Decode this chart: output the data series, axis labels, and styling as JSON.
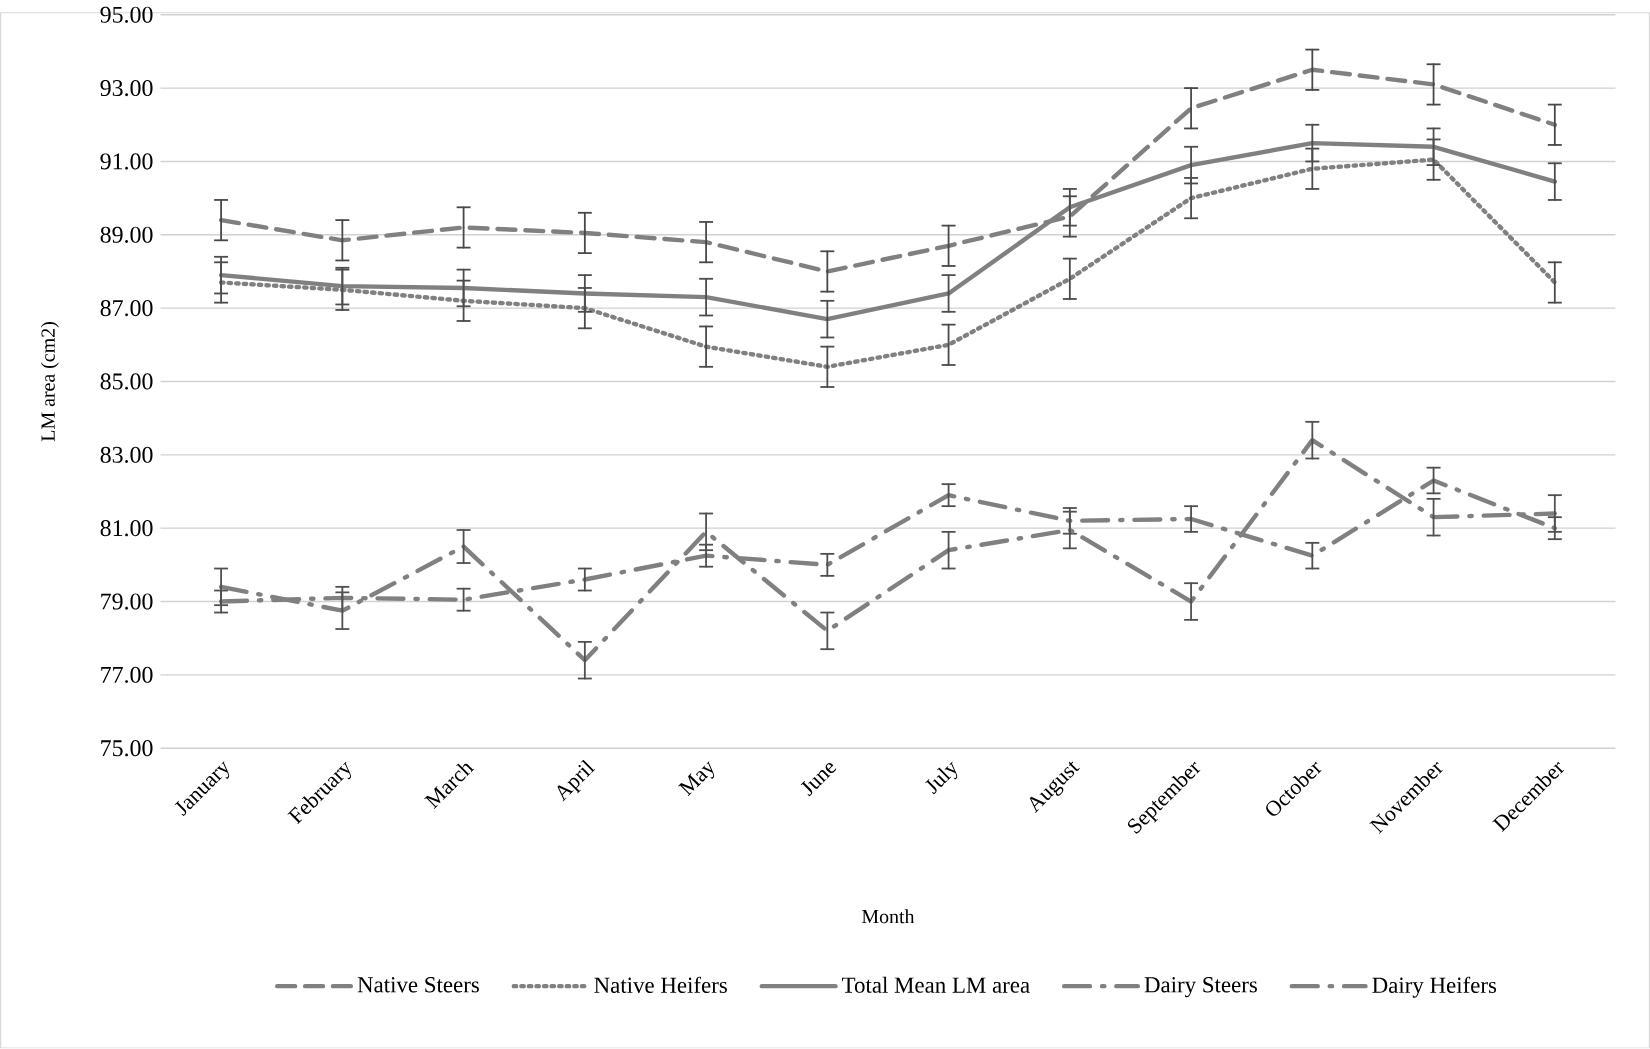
{
  "chart_data": {
    "type": "line",
    "xlabel": "Month",
    "ylabel": "LM area (cm2)",
    "categories": [
      "January",
      "February",
      "March",
      "April",
      "May",
      "June",
      "July",
      "August",
      "September",
      "October",
      "November",
      "December"
    ],
    "ylim": [
      75,
      95
    ],
    "yticks": [
      {
        "value": 75,
        "label": "75.00"
      },
      {
        "value": 77,
        "label": "77.00"
      },
      {
        "value": 79,
        "label": "79.00"
      },
      {
        "value": 81,
        "label": "81.00"
      },
      {
        "value": 83,
        "label": "83.00"
      },
      {
        "value": 85,
        "label": "85.00"
      },
      {
        "value": 87,
        "label": "87.00"
      },
      {
        "value": 89,
        "label": "89.00"
      },
      {
        "value": 91,
        "label": "91.00"
      },
      {
        "value": 93,
        "label": "93.00"
      },
      {
        "value": 95,
        "label": "95.00"
      }
    ],
    "grid": "y",
    "legend": "bottom",
    "marker": "none",
    "series": [
      {
        "name": "Native Steers",
        "color": "#808080",
        "line_style": "dashed",
        "values": [
          89.4,
          88.85,
          89.2,
          89.05,
          88.8,
          88.0,
          88.7,
          89.5,
          92.45,
          93.5,
          93.1,
          92.0
        ],
        "errors": [
          0.55,
          0.55,
          0.55,
          0.55,
          0.55,
          0.55,
          0.55,
          0.55,
          0.55,
          0.55,
          0.55,
          0.55
        ]
      },
      {
        "name": "Native Heifers",
        "color": "#808080",
        "line_style": "dotted",
        "values": [
          87.7,
          87.5,
          87.2,
          87.0,
          85.95,
          85.4,
          86.0,
          87.8,
          90.0,
          90.8,
          91.05,
          87.7
        ],
        "errors": [
          0.55,
          0.55,
          0.55,
          0.55,
          0.55,
          0.55,
          0.55,
          0.55,
          0.55,
          0.55,
          0.55,
          0.55
        ]
      },
      {
        "name": "Total Mean LM area",
        "color": "#808080",
        "line_style": "solid",
        "values": [
          87.9,
          87.6,
          87.55,
          87.4,
          87.3,
          86.7,
          87.4,
          89.75,
          90.9,
          91.5,
          91.4,
          90.45
        ],
        "errors": [
          0.5,
          0.5,
          0.5,
          0.5,
          0.5,
          0.5,
          0.5,
          0.5,
          0.5,
          0.5,
          0.5,
          0.5
        ]
      },
      {
        "name": "Dairy Steers",
        "color": "#808080",
        "line_style": "dashdot",
        "values": [
          79.0,
          79.1,
          79.05,
          79.6,
          80.25,
          80.0,
          81.9,
          81.2,
          81.25,
          80.25,
          82.3,
          81.0
        ],
        "errors": [
          0.3,
          0.3,
          0.3,
          0.3,
          0.3,
          0.3,
          0.3,
          0.35,
          0.35,
          0.35,
          0.35,
          0.3
        ]
      },
      {
        "name": "Dairy Heifers",
        "color": "#808080",
        "line_style": "dashdot",
        "values": [
          79.4,
          78.75,
          80.5,
          77.4,
          80.9,
          78.2,
          80.4,
          80.95,
          79.0,
          83.4,
          81.3,
          81.4
        ],
        "errors": [
          0.5,
          0.5,
          0.45,
          0.5,
          0.5,
          0.5,
          0.5,
          0.5,
          0.5,
          0.5,
          0.5,
          0.5
        ]
      }
    ]
  }
}
